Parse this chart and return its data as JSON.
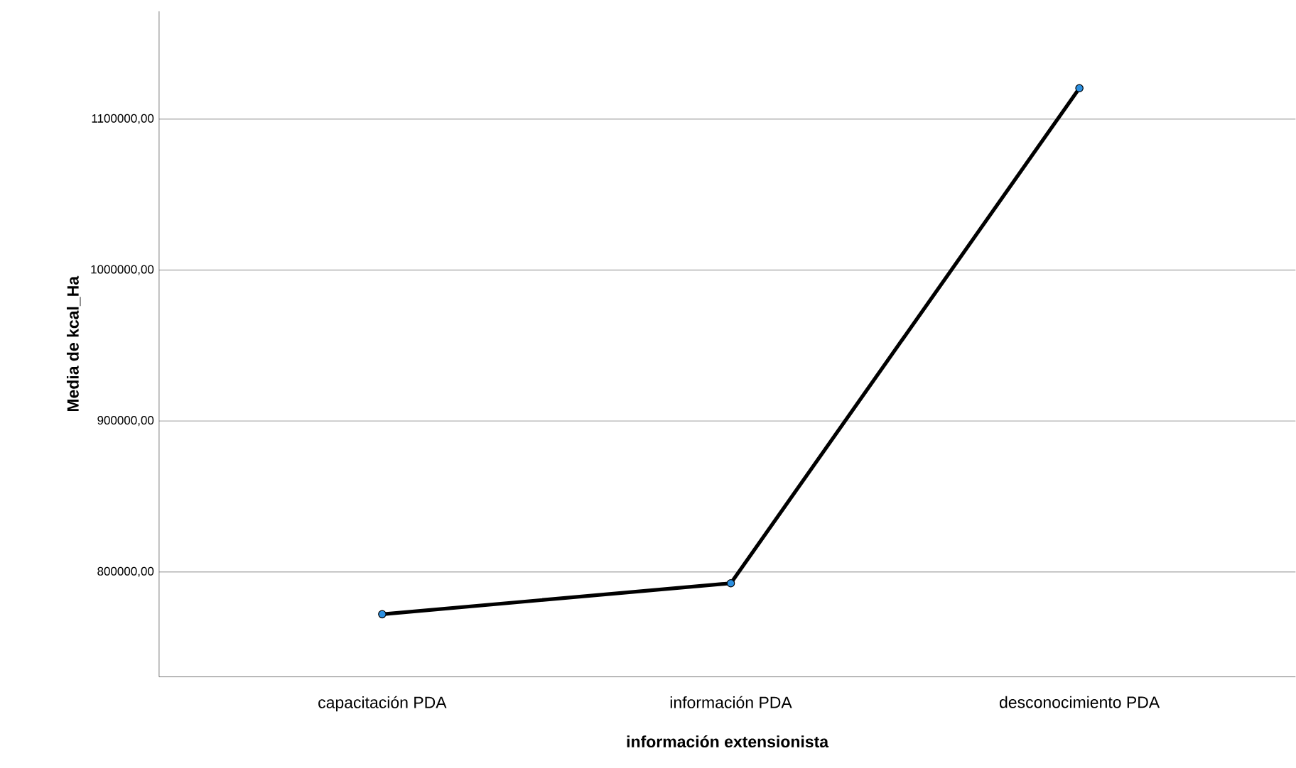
{
  "chart_data": {
    "type": "line",
    "xlabel": "información extensionista",
    "ylabel": "Media de kcal_Ha",
    "categories": [
      "capacitación PDA",
      "información PDA",
      "desconocimiento PDA"
    ],
    "series": [
      {
        "color": "#000000",
        "colors": [
          "#2b8fe0",
          "#2b8fe0",
          "#2b8fe0"
        ],
        "values": [
          772000,
          792500,
          1120500
        ]
      }
    ],
    "ylim": [
      730500,
      1171400
    ],
    "yticks": [
      {
        "value": 800000,
        "label": "800000,00"
      },
      {
        "value": 900000,
        "label": "900000,00"
      },
      {
        "value": 1000000,
        "label": "1000000,00"
      },
      {
        "value": 1100000,
        "label": "1100000,00"
      }
    ],
    "grid": "y",
    "marker": "circle",
    "line_style": "solid"
  }
}
